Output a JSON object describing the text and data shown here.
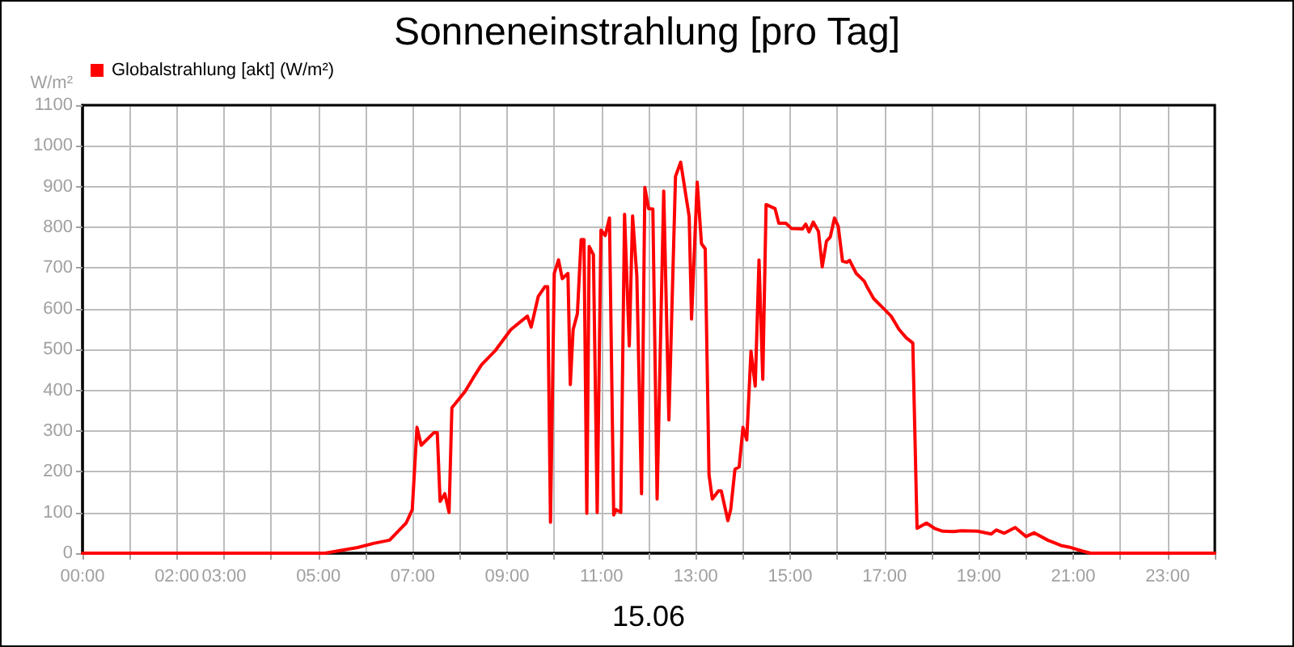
{
  "chart_data": {
    "type": "line",
    "title": "Sonneneinstrahlung [pro Tag]",
    "xlabel": "15.06",
    "ylabel": "W/m²",
    "xlim": [
      0,
      24
    ],
    "ylim": [
      0,
      1100
    ],
    "xticks": [
      {
        "value": 0,
        "label": "00:00"
      },
      {
        "value": 1,
        "label": null
      },
      {
        "value": 2,
        "label": "02:00"
      },
      {
        "value": 3,
        "label": "03:00"
      },
      {
        "value": 4,
        "label": null
      },
      {
        "value": 5,
        "label": "05:00"
      },
      {
        "value": 6,
        "label": null
      },
      {
        "value": 7,
        "label": "07:00"
      },
      {
        "value": 8,
        "label": null
      },
      {
        "value": 9,
        "label": "09:00"
      },
      {
        "value": 10,
        "label": null
      },
      {
        "value": 11,
        "label": "11:00"
      },
      {
        "value": 12,
        "label": null
      },
      {
        "value": 13,
        "label": "13:00"
      },
      {
        "value": 14,
        "label": null
      },
      {
        "value": 15,
        "label": "15:00"
      },
      {
        "value": 16,
        "label": null
      },
      {
        "value": 17,
        "label": "17:00"
      },
      {
        "value": 18,
        "label": null
      },
      {
        "value": 19,
        "label": "19:00"
      },
      {
        "value": 20,
        "label": null
      },
      {
        "value": 21,
        "label": "21:00"
      },
      {
        "value": 22,
        "label": null
      },
      {
        "value": 23,
        "label": "23:00"
      },
      {
        "value": 24,
        "label": null
      }
    ],
    "yticks": [
      0,
      100,
      200,
      300,
      400,
      500,
      600,
      700,
      800,
      900,
      1000,
      1100
    ],
    "grid": true,
    "legend": "top left",
    "marker": "none",
    "line_style": "solid",
    "series": [
      {
        "name": "Globalstrahlung [akt] (W/m²)",
        "color": "#ff0000",
        "x": [
          0,
          5.14,
          5.83,
          6.17,
          6.51,
          6.74,
          6.86,
          6.99,
          7.09,
          7.18,
          7.45,
          7.52,
          7.58,
          7.68,
          7.77,
          7.83,
          8.11,
          8.28,
          8.46,
          8.74,
          9.08,
          9.43,
          9.51,
          9.66,
          9.8,
          9.86,
          9.92,
          10.0,
          10.09,
          10.17,
          10.29,
          10.34,
          10.4,
          10.49,
          10.57,
          10.63,
          10.69,
          10.74,
          10.83,
          10.91,
          10.99,
          11.08,
          11.17,
          11.26,
          11.31,
          11.41,
          11.49,
          11.59,
          11.66,
          11.75,
          11.85,
          11.92,
          12.0,
          12.09,
          12.18,
          12.32,
          12.43,
          12.57,
          12.68,
          12.86,
          12.91,
          13.03,
          13.12,
          13.2,
          13.28,
          13.35,
          13.48,
          13.54,
          13.68,
          13.74,
          13.83,
          13.92,
          14.0,
          14.08,
          14.17,
          14.26,
          14.34,
          14.42,
          14.49,
          14.68,
          14.76,
          14.91,
          15.03,
          15.26,
          15.33,
          15.4,
          15.49,
          15.6,
          15.68,
          15.77,
          15.85,
          15.94,
          16.02,
          16.11,
          16.2,
          16.26,
          16.4,
          16.57,
          16.63,
          16.77,
          16.97,
          17.14,
          17.31,
          17.46,
          17.6,
          17.69,
          17.89,
          18.06,
          18.23,
          18.46,
          18.63,
          18.97,
          19.26,
          19.37,
          19.54,
          19.77,
          20.0,
          20.17,
          20.46,
          20.74,
          20.91,
          21.2,
          21.37,
          24
        ],
        "values": [
          0,
          0,
          14,
          24,
          32,
          60,
          74,
          107,
          309,
          265,
          296,
          296,
          127,
          146,
          100,
          357,
          397,
          430,
          463,
          496,
          549,
          582,
          555,
          630,
          654,
          654,
          76,
          687,
          720,
          674,
          687,
          414,
          549,
          588,
          770,
          770,
          98,
          753,
          733,
          100,
          793,
          780,
          823,
          94,
          107,
          100,
          832,
          509,
          828,
          681,
          146,
          898,
          846,
          845,
          133,
          889,
          327,
          925,
          960,
          826,
          575,
          911,
          760,
          747,
          193,
          133,
          153,
          153,
          80,
          107,
          206,
          212,
          309,
          278,
          496,
          410,
          720,
          427,
          856,
          846,
          810,
          810,
          797,
          796,
          808,
          789,
          813,
          790,
          703,
          766,
          776,
          823,
          802,
          717,
          714,
          719,
          687,
          668,
          654,
          625,
          602,
          582,
          549,
          529,
          516,
          61,
          74,
          61,
          54,
          53,
          55,
          54,
          47,
          57,
          49,
          63,
          41,
          50,
          32,
          19,
          15,
          5,
          0,
          0
        ]
      }
    ]
  }
}
